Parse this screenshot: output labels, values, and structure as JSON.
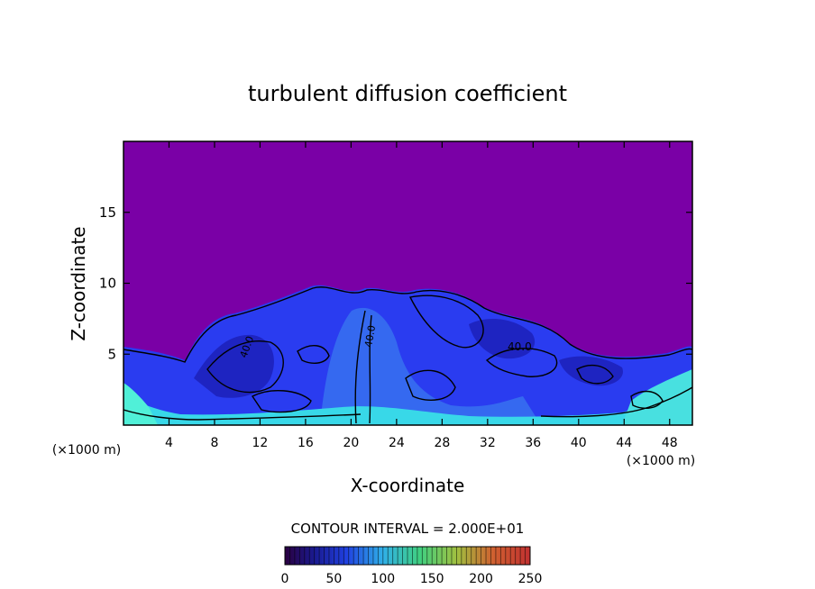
{
  "chart_data": {
    "type": "heatmap",
    "title": "turbulent diffusion coefficient",
    "xlabel": "X-coordinate",
    "ylabel": "Z-coordinate",
    "x_unit_left": "(×1000 m)",
    "x_unit_right": "(×1000 m)",
    "xlim": [
      0,
      50
    ],
    "ylim": [
      0,
      20
    ],
    "x_ticks": [
      "4",
      "8",
      "12",
      "16",
      "20",
      "24",
      "28",
      "32",
      "36",
      "40",
      "44",
      "48"
    ],
    "y_ticks": [
      "5",
      "10",
      "15"
    ],
    "x_tick_values": [
      4,
      8,
      12,
      16,
      20,
      24,
      28,
      32,
      36,
      40,
      44,
      48
    ],
    "y_tick_values": [
      5,
      10,
      15
    ],
    "contour_interval_text": "CONTOUR INTERVAL = 2.000E+01",
    "contour_labels": [
      "40.0",
      "40.0",
      "40.0"
    ],
    "colorbar": {
      "range": [
        0,
        250
      ],
      "tick_labels": [
        "0",
        "50",
        "100",
        "150",
        "200",
        "250"
      ],
      "tick_values": [
        0,
        50,
        100,
        150,
        200,
        250
      ]
    },
    "colors": {
      "background_low": "#7a00a6",
      "mid_blue": "#2a3cf0",
      "cyan": "#38d8e8",
      "contour": "#000000"
    }
  }
}
